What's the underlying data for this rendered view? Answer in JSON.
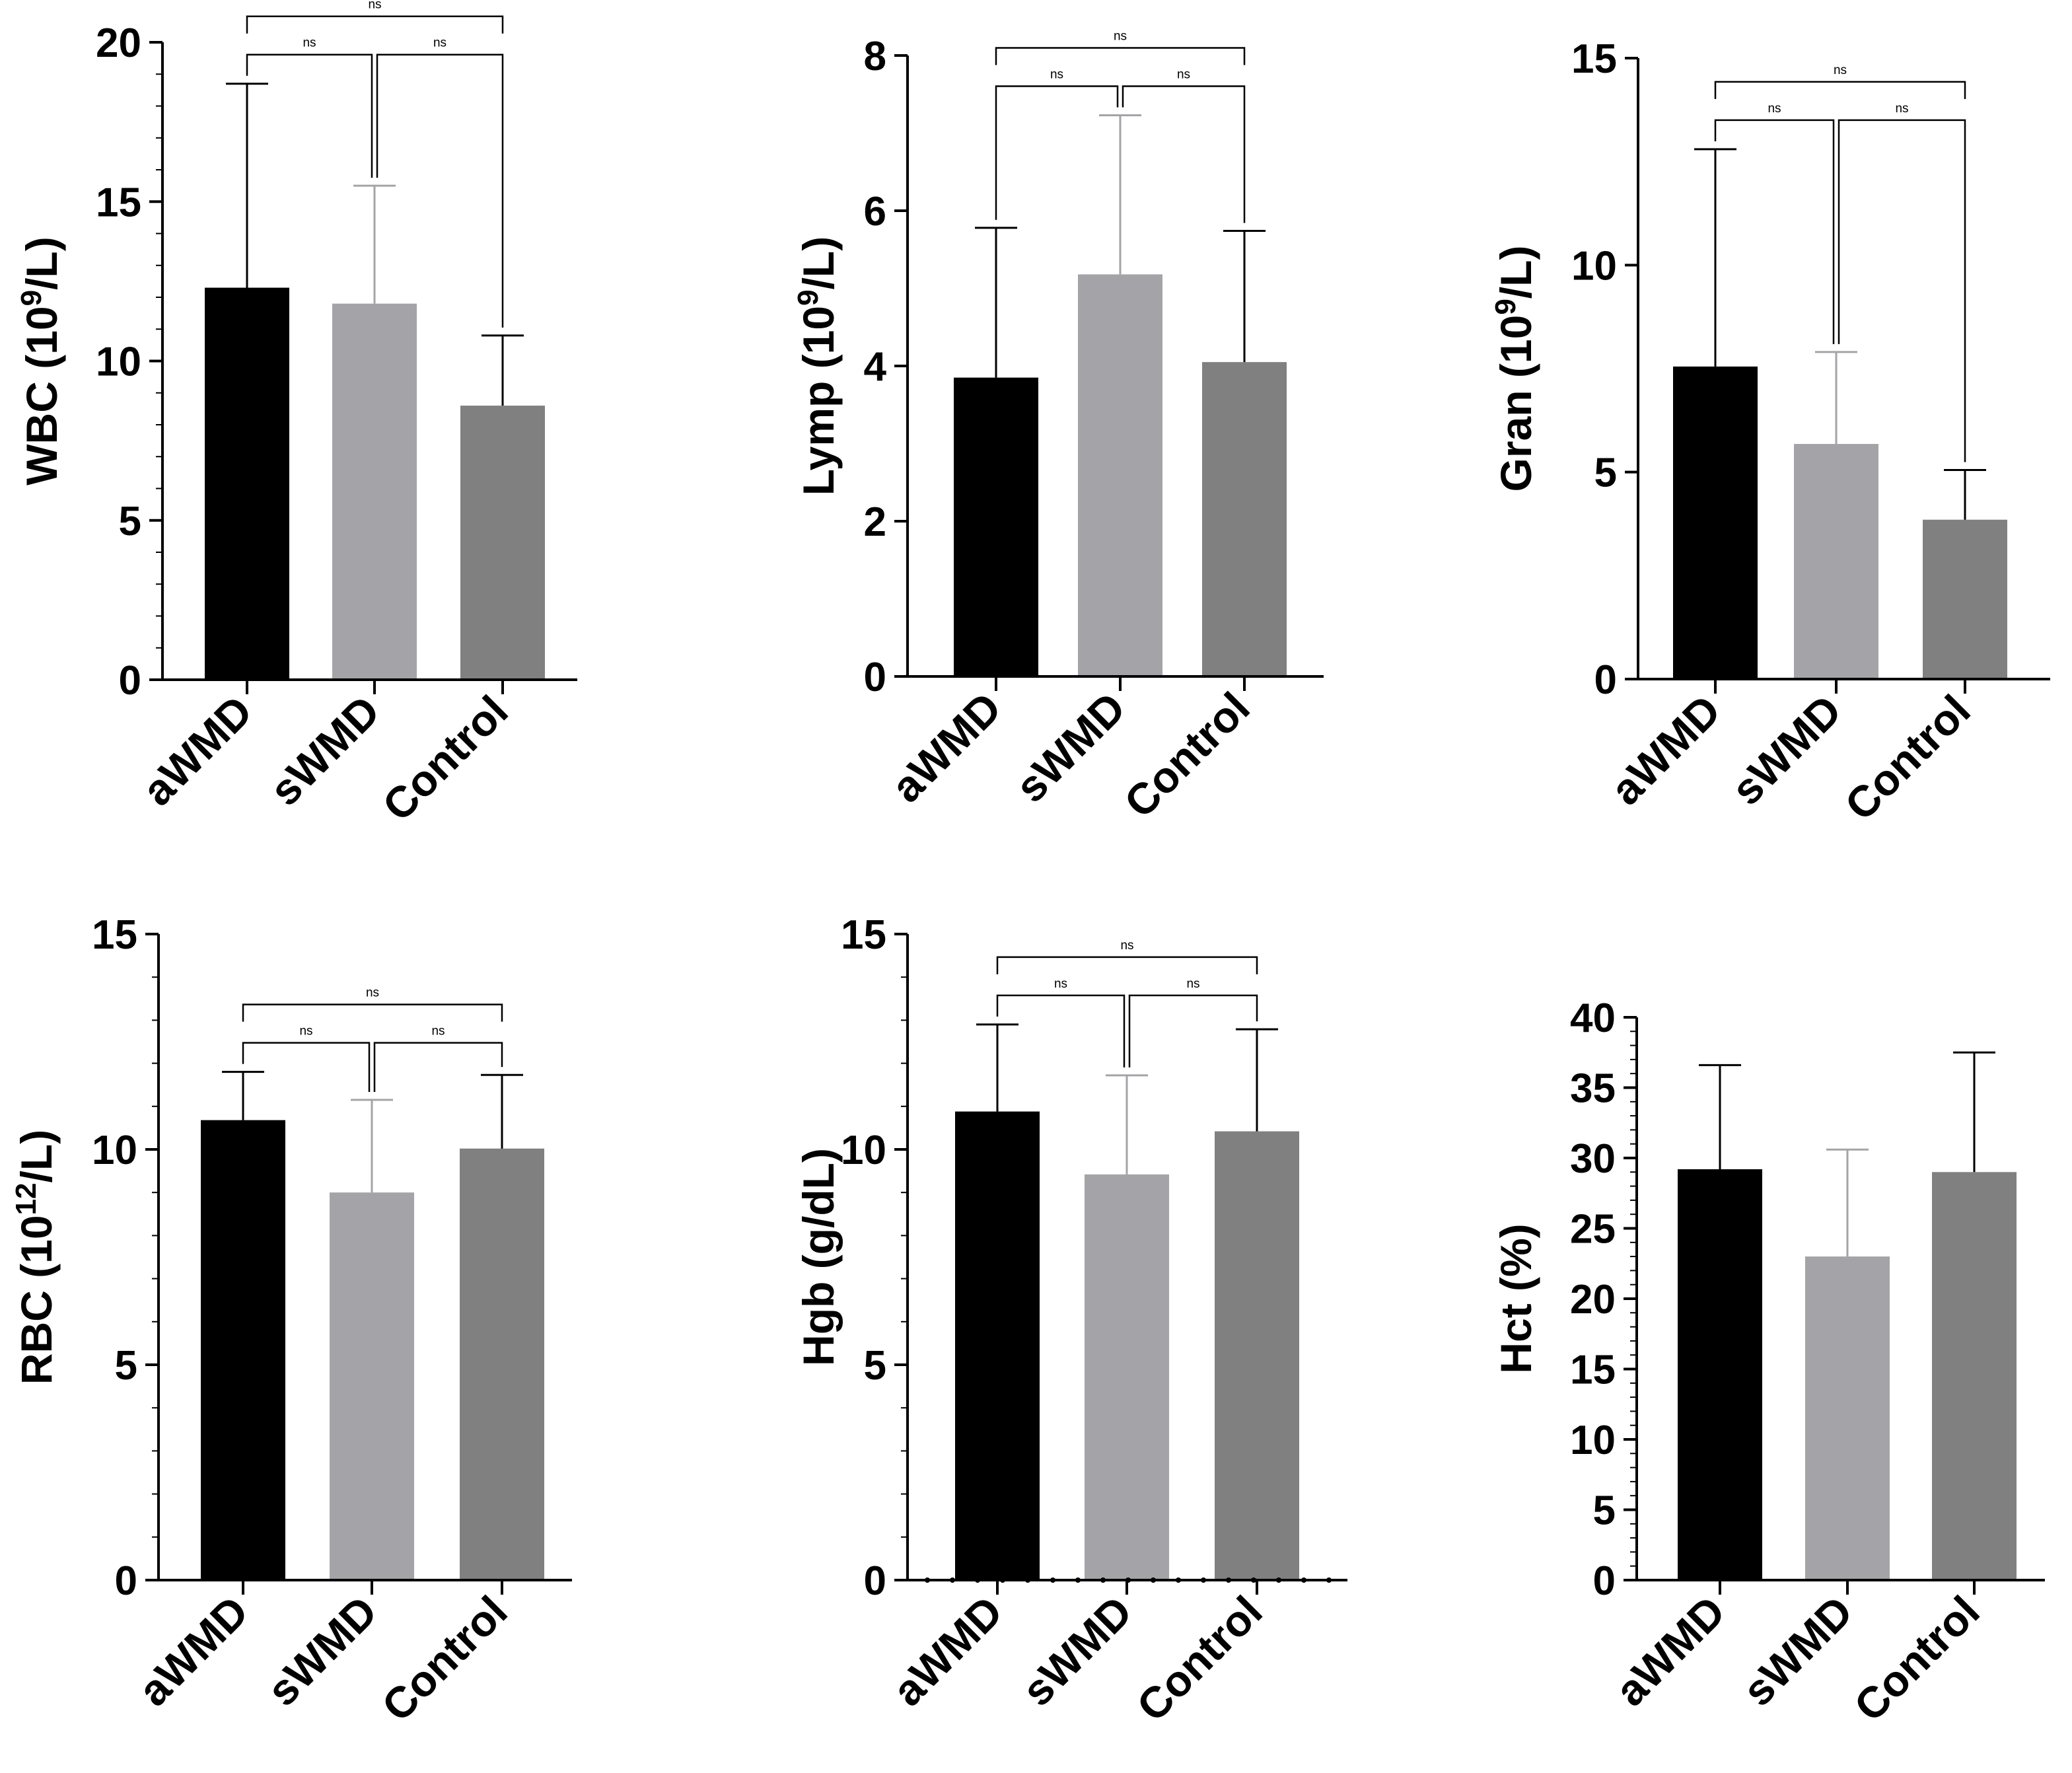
{
  "colors": {
    "aWMD": "#000000",
    "sWMD": "#a4a4a8",
    "Control": "#808080",
    "sWMD_error": "#a4a4a8",
    "axis": "#000000"
  },
  "chart_data": [
    {
      "type": "bar",
      "ylabel_parts": [
        "WBC (10",
        "9",
        "/L)"
      ],
      "categories": [
        "aWMD",
        "sWMD",
        "Control"
      ],
      "values": [
        12.3,
        11.8,
        8.6
      ],
      "errors": [
        6.4,
        3.7,
        2.2
      ],
      "ylim": [
        0,
        20
      ],
      "yticks": [
        0,
        5,
        10,
        15,
        20
      ],
      "minor_step": 1,
      "comparisons": [
        {
          "groups": [
            "aWMD",
            "sWMD"
          ],
          "label": "ns"
        },
        {
          "groups": [
            "sWMD",
            "Control"
          ],
          "label": "ns"
        },
        {
          "groups": [
            "aWMD",
            "Control"
          ],
          "label": "ns"
        }
      ]
    },
    {
      "type": "bar",
      "ylabel_parts": [
        "Lymp (10",
        "9",
        "/L)"
      ],
      "categories": [
        "aWMD",
        "sWMD",
        "Control"
      ],
      "values": [
        3.85,
        5.18,
        4.05
      ],
      "errors": [
        1.93,
        2.05,
        1.69
      ],
      "ylim": [
        0,
        8
      ],
      "yticks": [
        0,
        2,
        4,
        6,
        8
      ],
      "minor_step": 0,
      "comparisons": [
        {
          "groups": [
            "aWMD",
            "sWMD"
          ],
          "label": "ns"
        },
        {
          "groups": [
            "sWMD",
            "Control"
          ],
          "label": "ns"
        },
        {
          "groups": [
            "aWMD",
            "Control"
          ],
          "label": "ns"
        }
      ]
    },
    {
      "type": "bar",
      "ylabel_parts": [
        "Gran (10",
        "9",
        "/L)"
      ],
      "categories": [
        "aWMD",
        "sWMD",
        "Control"
      ],
      "values": [
        7.55,
        5.68,
        3.85
      ],
      "errors": [
        5.25,
        2.22,
        1.2
      ],
      "ylim": [
        0,
        15
      ],
      "yticks": [
        0,
        5,
        10,
        15
      ],
      "minor_step": 0,
      "comparisons": [
        {
          "groups": [
            "aWMD",
            "sWMD"
          ],
          "label": "ns"
        },
        {
          "groups": [
            "sWMD",
            "Control"
          ],
          "label": "ns"
        },
        {
          "groups": [
            "aWMD",
            "Control"
          ],
          "label": "ns"
        }
      ]
    },
    {
      "type": "bar",
      "ylabel_parts": [
        "RBC (10",
        "12",
        "/L)"
      ],
      "categories": [
        "aWMD",
        "sWMD",
        "Control"
      ],
      "values": [
        10.68,
        9.0,
        10.02
      ],
      "errors": [
        1.12,
        2.15,
        1.71
      ],
      "ylim": [
        0,
        15
      ],
      "yticks": [
        0,
        5,
        10,
        15
      ],
      "minor_step": 1,
      "comparisons": [
        {
          "groups": [
            "aWMD",
            "sWMD"
          ],
          "label": "ns"
        },
        {
          "groups": [
            "sWMD",
            "Control"
          ],
          "label": "ns"
        },
        {
          "groups": [
            "aWMD",
            "Control"
          ],
          "label": "ns"
        }
      ]
    },
    {
      "type": "bar",
      "ylabel_parts": [
        "Hgb (g/dL)"
      ],
      "categories": [
        "aWMD",
        "sWMD",
        "Control"
      ],
      "values": [
        10.88,
        9.42,
        10.42
      ],
      "errors": [
        2.02,
        2.3,
        2.37
      ],
      "ylim": [
        0,
        15
      ],
      "yticks": [
        0,
        5,
        10,
        15
      ],
      "minor_step": 1,
      "dotted_baseline": true,
      "comparisons": [
        {
          "groups": [
            "aWMD",
            "sWMD"
          ],
          "label": "ns"
        },
        {
          "groups": [
            "sWMD",
            "Control"
          ],
          "label": "ns"
        },
        {
          "groups": [
            "aWMD",
            "Control"
          ],
          "label": "ns"
        }
      ]
    },
    {
      "type": "bar",
      "ylabel_parts": [
        "Hct (%)"
      ],
      "categories": [
        "aWMD",
        "sWMD",
        "Control"
      ],
      "values": [
        29.2,
        23.0,
        29.0
      ],
      "errors": [
        7.4,
        7.6,
        8.5
      ],
      "ylim": [
        0,
        40
      ],
      "yticks": [
        0,
        5,
        10,
        15,
        20,
        25,
        30,
        35,
        40
      ],
      "minor_step": 1,
      "comparisons": []
    }
  ]
}
